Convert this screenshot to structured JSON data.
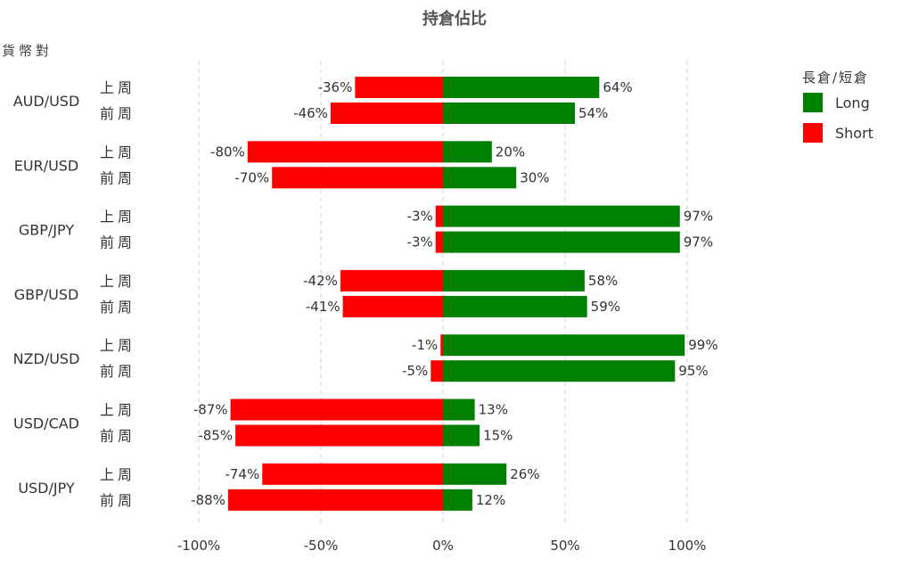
{
  "chart_data": {
    "type": "bar",
    "orientation": "horizontal-diverging",
    "title": "持倉佔比",
    "ylabel": "貨幣對",
    "xlim": [
      -100,
      100
    ],
    "xticks": [
      "-100%",
      "-50%",
      "0%",
      "50%",
      "100%"
    ],
    "xtick_values": [
      -100,
      -50,
      0,
      50,
      100
    ],
    "grid": "vertical-dashed",
    "legend": {
      "title": "長倉/短倉",
      "position": "top-right",
      "entries": [
        {
          "label": "Long",
          "color": "#008000"
        },
        {
          "label": "Short",
          "color": "#ff0000"
        }
      ]
    },
    "groups": [
      {
        "pair": "AUD/USD",
        "rows": [
          {
            "period": "上周",
            "short": -36,
            "long": 64,
            "short_label": "-36%",
            "long_label": "64%"
          },
          {
            "period": "前周",
            "short": -46,
            "long": 54,
            "short_label": "-46%",
            "long_label": "54%"
          }
        ]
      },
      {
        "pair": "EUR/USD",
        "rows": [
          {
            "period": "上周",
            "short": -80,
            "long": 20,
            "short_label": "-80%",
            "long_label": "20%"
          },
          {
            "period": "前周",
            "short": -70,
            "long": 30,
            "short_label": "-70%",
            "long_label": "30%"
          }
        ]
      },
      {
        "pair": "GBP/JPY",
        "rows": [
          {
            "period": "上周",
            "short": -3,
            "long": 97,
            "short_label": "-3%",
            "long_label": "97%"
          },
          {
            "period": "前周",
            "short": -3,
            "long": 97,
            "short_label": "-3%",
            "long_label": "97%"
          }
        ]
      },
      {
        "pair": "GBP/USD",
        "rows": [
          {
            "period": "上周",
            "short": -42,
            "long": 58,
            "short_label": "-42%",
            "long_label": "58%"
          },
          {
            "period": "前周",
            "short": -41,
            "long": 59,
            "short_label": "-41%",
            "long_label": "59%"
          }
        ]
      },
      {
        "pair": "NZD/USD",
        "rows": [
          {
            "period": "上周",
            "short": -1,
            "long": 99,
            "short_label": "-1%",
            "long_label": "99%"
          },
          {
            "period": "前周",
            "short": -5,
            "long": 95,
            "short_label": "-5%",
            "long_label": "95%"
          }
        ]
      },
      {
        "pair": "USD/CAD",
        "rows": [
          {
            "period": "上周",
            "short": -87,
            "long": 13,
            "short_label": "-87%",
            "long_label": "13%"
          },
          {
            "period": "前周",
            "short": -85,
            "long": 15,
            "short_label": "-85%",
            "long_label": "15%"
          }
        ]
      },
      {
        "pair": "USD/JPY",
        "rows": [
          {
            "period": "上周",
            "short": -74,
            "long": 26,
            "short_label": "-74%",
            "long_label": "26%"
          },
          {
            "period": "前周",
            "short": -88,
            "long": 12,
            "short_label": "-88%",
            "long_label": "12%"
          }
        ]
      }
    ]
  }
}
